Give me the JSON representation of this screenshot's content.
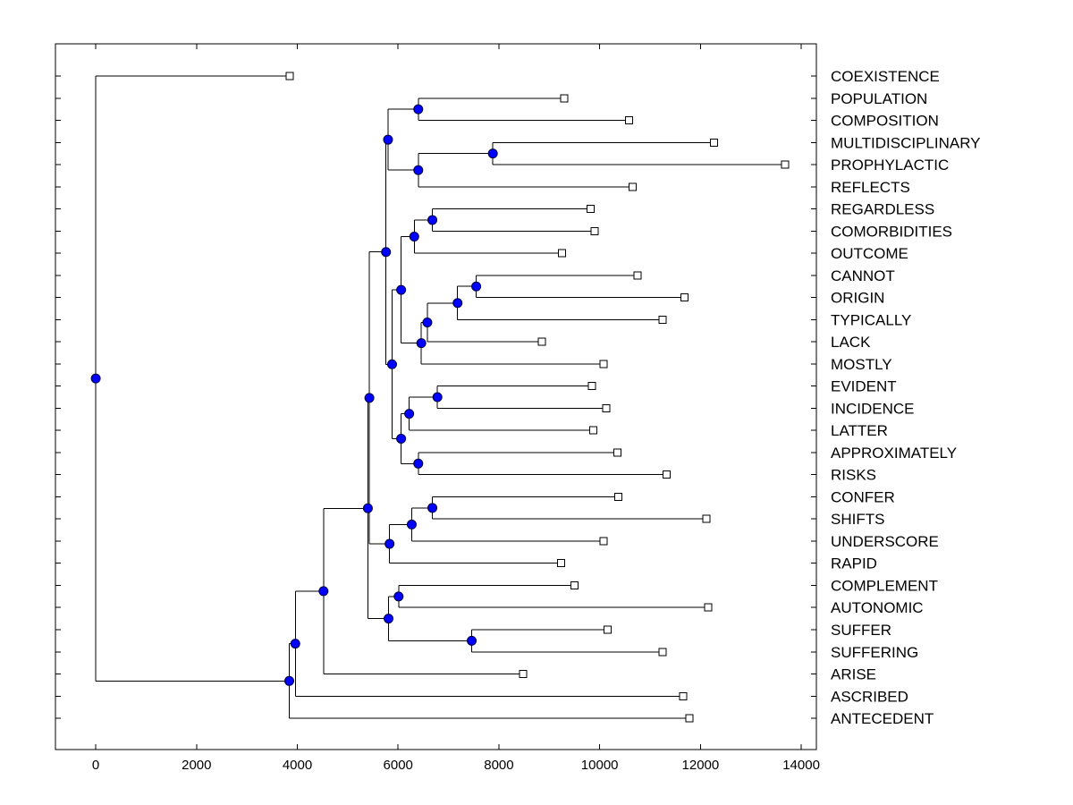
{
  "chart_data": {
    "type": "dendrogram",
    "orientation": "horizontal",
    "title": "",
    "xlabel": "",
    "ylabel": "",
    "xlim": [
      -800,
      14300
    ],
    "x_ticks": [
      0,
      2000,
      4000,
      6000,
      8000,
      10000,
      12000,
      14000
    ],
    "x_tick_labels": [
      "0",
      "2000",
      "4000",
      "6000",
      "8000",
      "10000",
      "12000",
      "14000"
    ],
    "grid": false,
    "leaves": [
      {
        "label": "COEXISTENCE",
        "x": 3850
      },
      {
        "label": "POPULATION",
        "x": 9300
      },
      {
        "label": "COMPOSITION",
        "x": 10580
      },
      {
        "label": "MULTIDISCIPLINARY",
        "x": 12270
      },
      {
        "label": "PROPHYLACTIC",
        "x": 13680
      },
      {
        "label": "REFLECTS",
        "x": 10650
      },
      {
        "label": "REGARDLESS",
        "x": 9820
      },
      {
        "label": "COMORBIDITIES",
        "x": 9900
      },
      {
        "label": "OUTCOME",
        "x": 9250
      },
      {
        "label": "CANNOT",
        "x": 10750
      },
      {
        "label": "ORIGIN",
        "x": 11680
      },
      {
        "label": "TYPICALLY",
        "x": 11250
      },
      {
        "label": "LACK",
        "x": 8850
      },
      {
        "label": "MOSTLY",
        "x": 10080
      },
      {
        "label": "EVIDENT",
        "x": 9850
      },
      {
        "label": "INCIDENCE",
        "x": 10130
      },
      {
        "label": "LATTER",
        "x": 9870
      },
      {
        "label": "APPROXIMATELY",
        "x": 10350
      },
      {
        "label": "RISKS",
        "x": 11330
      },
      {
        "label": "CONFER",
        "x": 10370
      },
      {
        "label": "SHIFTS",
        "x": 12120
      },
      {
        "label": "UNDERSCORE",
        "x": 10080
      },
      {
        "label": "RAPID",
        "x": 9230
      },
      {
        "label": "COMPLEMENT",
        "x": 9500
      },
      {
        "label": "AUTONOMIC",
        "x": 12150
      },
      {
        "label": "SUFFER",
        "x": 10160
      },
      {
        "label": "SUFFERING",
        "x": 11250
      },
      {
        "label": "ARISE",
        "x": 8480
      },
      {
        "label": "ASCRIBED",
        "x": 11660
      },
      {
        "label": "ANTECEDENT",
        "x": 11780
      }
    ],
    "nodes": [
      {
        "id": "N1",
        "x": 6400,
        "children": [
          "L1",
          "L2"
        ]
      },
      {
        "id": "N2",
        "x": 7880,
        "children": [
          "L3",
          "L4"
        ]
      },
      {
        "id": "N3",
        "x": 6400,
        "children": [
          "N2",
          "L5"
        ]
      },
      {
        "id": "N4",
        "x": 5800,
        "children": [
          "N1",
          "N3"
        ]
      },
      {
        "id": "N5",
        "x": 6680,
        "children": [
          "L6",
          "L7"
        ]
      },
      {
        "id": "N6",
        "x": 6320,
        "children": [
          "N5",
          "L8"
        ]
      },
      {
        "id": "N7",
        "x": 7550,
        "children": [
          "L9",
          "L10"
        ]
      },
      {
        "id": "N8",
        "x": 7180,
        "children": [
          "N7",
          "L11"
        ]
      },
      {
        "id": "N9",
        "x": 6580,
        "children": [
          "N8",
          "L12"
        ]
      },
      {
        "id": "N10",
        "x": 6460,
        "children": [
          "N9",
          "L13"
        ]
      },
      {
        "id": "N11",
        "x": 6060,
        "children": [
          "N6",
          "N10"
        ]
      },
      {
        "id": "N12",
        "x": 6780,
        "children": [
          "L14",
          "L15"
        ]
      },
      {
        "id": "N13",
        "x": 6220,
        "children": [
          "N12",
          "L16"
        ]
      },
      {
        "id": "N14",
        "x": 6400,
        "children": [
          "L17",
          "L18"
        ]
      },
      {
        "id": "N15",
        "x": 6060,
        "children": [
          "N13",
          "N14"
        ]
      },
      {
        "id": "N16",
        "x": 5880,
        "children": [
          "N11",
          "N15"
        ]
      },
      {
        "id": "N17",
        "x": 5760,
        "children": [
          "N4",
          "N16"
        ]
      },
      {
        "id": "N18",
        "x": 6680,
        "children": [
          "L19",
          "L20"
        ]
      },
      {
        "id": "N19",
        "x": 6270,
        "children": [
          "N18",
          "L21"
        ]
      },
      {
        "id": "N20",
        "x": 5830,
        "children": [
          "N19",
          "L22"
        ]
      },
      {
        "id": "N21",
        "x": 5430,
        "children": [
          "N17",
          "N20"
        ]
      },
      {
        "id": "N22",
        "x": 6010,
        "children": [
          "L23",
          "L24"
        ]
      },
      {
        "id": "N23",
        "x": 7460,
        "children": [
          "L25",
          "L26"
        ]
      },
      {
        "id": "N24",
        "x": 5810,
        "children": [
          "N22",
          "N23"
        ]
      },
      {
        "id": "N25",
        "x": 5400,
        "children": [
          "N21",
          "N24"
        ]
      },
      {
        "id": "N26",
        "x": 4520,
        "children": [
          "N25",
          "L27"
        ]
      },
      {
        "id": "N27",
        "x": 3960,
        "children": [
          "N26",
          "L28"
        ]
      },
      {
        "id": "N28",
        "x": 3840,
        "children": [
          "N27",
          "L29"
        ]
      },
      {
        "id": "N29",
        "x": 0,
        "children": [
          "L0",
          "N28"
        ]
      }
    ]
  }
}
